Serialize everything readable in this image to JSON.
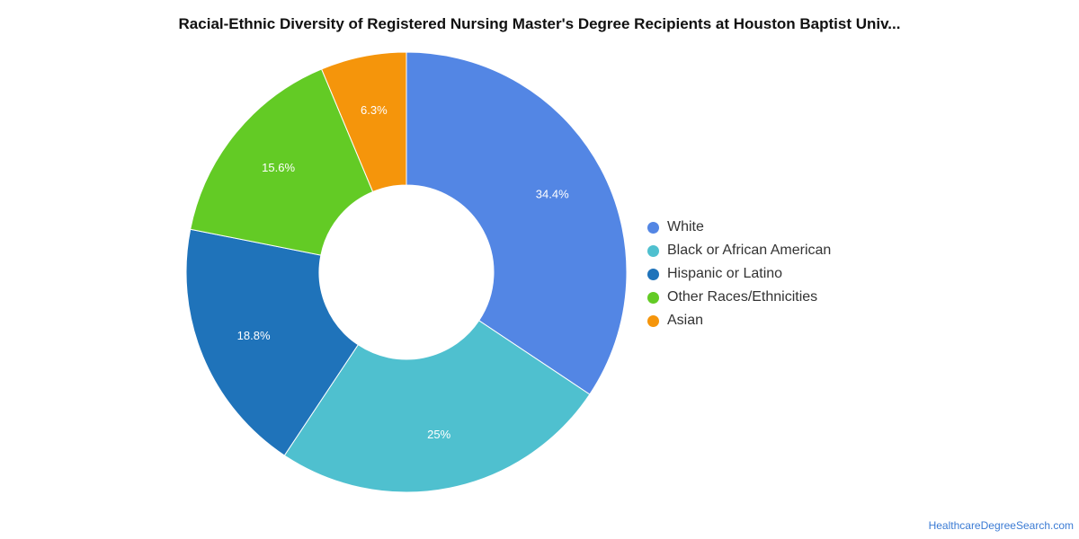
{
  "chart_data": {
    "type": "pie",
    "title": "Racial-Ethnic Diversity of Registered Nursing Master's Degree Recipients at Houston Baptist Univ...",
    "categories": [
      "White",
      "Black or African American",
      "Hispanic or Latino",
      "Other Races/Ethnicities",
      "Asian"
    ],
    "values": [
      34.4,
      25,
      18.8,
      15.6,
      6.3
    ],
    "labels": [
      "34.4%",
      "25%",
      "18.8%",
      "15.6%",
      "6.3%"
    ],
    "colors": [
      "#5386e4",
      "#4fc0cf",
      "#1f73ba",
      "#63cb25",
      "#f5950b"
    ],
    "donut": true,
    "legend": "right"
  },
  "footer": {
    "credit": "HealthcareDegreeSearch.com"
  }
}
